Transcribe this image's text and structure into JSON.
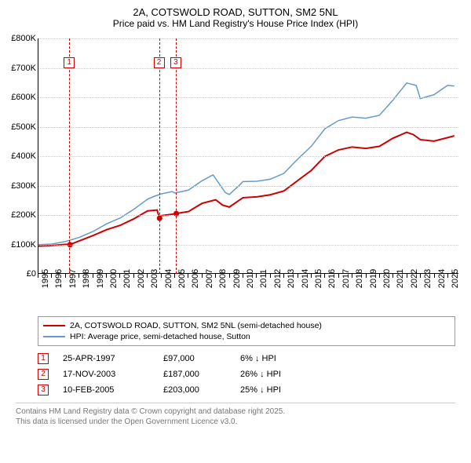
{
  "title": "2A, COTSWOLD ROAD, SUTTON, SM2 5NL",
  "subtitle": "Price paid vs. HM Land Registry's House Price Index (HPI)",
  "chart": {
    "type": "line",
    "background_color": "#ffffff",
    "grid_color": "#cccccc",
    "xlim": [
      1995,
      2025.8
    ],
    "ylim": [
      0,
      800000
    ],
    "ytick_step": 100000,
    "yticks": [
      "£0",
      "£100K",
      "£200K",
      "£300K",
      "£400K",
      "£500K",
      "£600K",
      "£700K",
      "£800K"
    ],
    "xticks": [
      "1995",
      "1996",
      "1997",
      "1998",
      "1999",
      "2000",
      "2001",
      "2002",
      "2003",
      "2004",
      "2005",
      "2006",
      "2007",
      "2008",
      "2009",
      "2010",
      "2011",
      "2012",
      "2013",
      "2014",
      "2015",
      "2016",
      "2017",
      "2018",
      "2019",
      "2020",
      "2021",
      "2022",
      "2023",
      "2024",
      "2025"
    ],
    "series": [
      {
        "name": "price_paid",
        "color": "#cc0000",
        "width": 2,
        "points": [
          [
            1995,
            92000
          ],
          [
            1996,
            94000
          ],
          [
            1997,
            98000
          ],
          [
            1997.3,
            97000
          ],
          [
            1998,
            110000
          ],
          [
            1999,
            128000
          ],
          [
            2000,
            148000
          ],
          [
            2001,
            163000
          ],
          [
            2002,
            185000
          ],
          [
            2003,
            212000
          ],
          [
            2003.7,
            215000
          ],
          [
            2003.88,
            187000
          ],
          [
            2004,
            196000
          ],
          [
            2005,
            202000
          ],
          [
            2005.1,
            203000
          ],
          [
            2006,
            210000
          ],
          [
            2007,
            238000
          ],
          [
            2008,
            250000
          ],
          [
            2008.5,
            232000
          ],
          [
            2009,
            225000
          ],
          [
            2010,
            257000
          ],
          [
            2011,
            260000
          ],
          [
            2012,
            267000
          ],
          [
            2013,
            280000
          ],
          [
            2014,
            315000
          ],
          [
            2015,
            350000
          ],
          [
            2016,
            398000
          ],
          [
            2017,
            420000
          ],
          [
            2018,
            430000
          ],
          [
            2019,
            425000
          ],
          [
            2020,
            432000
          ],
          [
            2021,
            460000
          ],
          [
            2022,
            480000
          ],
          [
            2022.5,
            472000
          ],
          [
            2023,
            455000
          ],
          [
            2024,
            450000
          ],
          [
            2025,
            462000
          ],
          [
            2025.5,
            468000
          ]
        ]
      },
      {
        "name": "hpi",
        "color": "#6699cc",
        "width": 1.5,
        "points": [
          [
            1995,
            97000
          ],
          [
            1996,
            99000
          ],
          [
            1997,
            108000
          ],
          [
            1998,
            122000
          ],
          [
            1999,
            142000
          ],
          [
            2000,
            168000
          ],
          [
            2001,
            188000
          ],
          [
            2002,
            218000
          ],
          [
            2003,
            252000
          ],
          [
            2003.5,
            262000
          ],
          [
            2004,
            270000
          ],
          [
            2004.8,
            278000
          ],
          [
            2005,
            273000
          ],
          [
            2006,
            283000
          ],
          [
            2007,
            315000
          ],
          [
            2007.8,
            335000
          ],
          [
            2008,
            322000
          ],
          [
            2008.7,
            275000
          ],
          [
            2009,
            268000
          ],
          [
            2009.7,
            298000
          ],
          [
            2010,
            312000
          ],
          [
            2011,
            313000
          ],
          [
            2012,
            320000
          ],
          [
            2013,
            340000
          ],
          [
            2014,
            388000
          ],
          [
            2015,
            432000
          ],
          [
            2016,
            492000
          ],
          [
            2017,
            520000
          ],
          [
            2018,
            532000
          ],
          [
            2019,
            528000
          ],
          [
            2020,
            538000
          ],
          [
            2021,
            590000
          ],
          [
            2022,
            648000
          ],
          [
            2022.7,
            640000
          ],
          [
            2023,
            595000
          ],
          [
            2024,
            608000
          ],
          [
            2025,
            640000
          ],
          [
            2025.5,
            638000
          ]
        ]
      }
    ],
    "events": [
      {
        "n": "1",
        "year": 1997.31,
        "color": "#cc0000"
      },
      {
        "n": "2",
        "year": 2003.88,
        "color": "#cc0000"
      },
      {
        "n": "3",
        "year": 2005.11,
        "color": "#cc0000"
      }
    ]
  },
  "legend": [
    {
      "color": "#cc0000",
      "label": "2A, COTSWOLD ROAD, SUTTON, SM2 5NL (semi-detached house)"
    },
    {
      "color": "#6699cc",
      "label": "HPI: Average price, semi-detached house, Sutton"
    }
  ],
  "transactions": [
    {
      "n": "1",
      "color": "#cc0000",
      "date": "25-APR-1997",
      "price": "£97,000",
      "diff": "6% ↓ HPI"
    },
    {
      "n": "2",
      "color": "#cc0000",
      "date": "17-NOV-2003",
      "price": "£187,000",
      "diff": "26% ↓ HPI"
    },
    {
      "n": "3",
      "color": "#cc0000",
      "date": "10-FEB-2005",
      "price": "£203,000",
      "diff": "25% ↓ HPI"
    }
  ],
  "footer_line1": "Contains HM Land Registry data © Crown copyright and database right 2025.",
  "footer_line2": "This data is licensed under the Open Government Licence v3.0."
}
